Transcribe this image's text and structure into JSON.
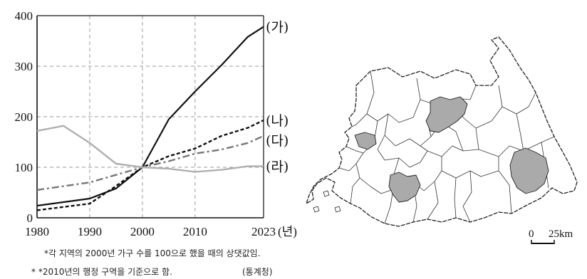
{
  "chart_data": {
    "type": "line",
    "x_ticks": [
      1980,
      1990,
      2000,
      2010,
      2023
    ],
    "x_tick_labels": [
      "1980",
      "1990",
      "2000",
      "2010",
      "2023"
    ],
    "x_unit": "(년)",
    "y_ticks": [
      0,
      100,
      200,
      300,
      400
    ],
    "y_tick_labels": [
      "0",
      "100",
      "200",
      "300",
      "400"
    ],
    "xlim": [
      1980,
      2023
    ],
    "ylim": [
      0,
      400
    ],
    "grid": true,
    "series": [
      {
        "name": "(가)",
        "style": "solid",
        "color": "#111111",
        "x": [
          1980,
          1990,
          1995,
          2000,
          2005,
          2010,
          2015,
          2020,
          2023
        ],
        "values": [
          24,
          38,
          58,
          100,
          195,
          250,
          302,
          358,
          378
        ]
      },
      {
        "name": "(나)",
        "style": "dashed",
        "color": "#111111",
        "x": [
          1980,
          1990,
          1995,
          2000,
          2005,
          2010,
          2015,
          2020,
          2023
        ],
        "values": [
          15,
          28,
          63,
          100,
          122,
          137,
          162,
          178,
          193
        ]
      },
      {
        "name": "(다)",
        "style": "dashdot",
        "color": "#777777",
        "x": [
          1980,
          1990,
          1995,
          2000,
          2005,
          2010,
          2015,
          2020,
          2023
        ],
        "values": [
          55,
          70,
          85,
          100,
          112,
          127,
          135,
          148,
          162
        ]
      },
      {
        "name": "(라)",
        "style": "solid",
        "color": "#b0b0b0",
        "x": [
          1980,
          1985,
          1990,
          1995,
          2000,
          2005,
          2010,
          2015,
          2020,
          2023
        ],
        "values": [
          172,
          182,
          148,
          107,
          100,
          97,
          91,
          95,
          102,
          102
        ]
      }
    ]
  },
  "notes": {
    "note1": "*각 지역의 2000년 가구 수를 100으로 했을 때의 상댓값임.",
    "note2": "* *2010년의 행정 구역을 기준으로 함.",
    "source": "(통계청)"
  },
  "map": {
    "scale_zero": "0",
    "scale_km": "25km",
    "highlight_color": "#aaaaaa"
  }
}
